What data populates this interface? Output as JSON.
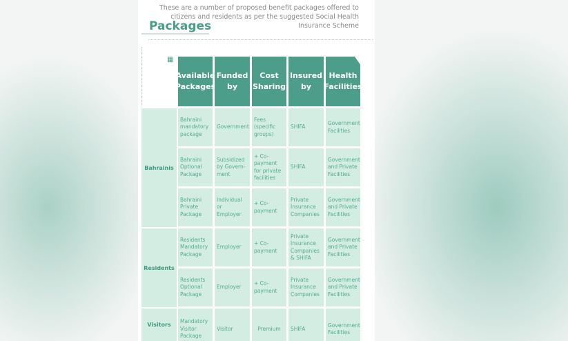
{
  "intro": "These are a number of proposed benefit packages offered to citizens and residents as per the suggested Social Health Insurance Scheme",
  "title": "Packages",
  "icon": "grid-icon",
  "colors": {
    "header": "#4c9e8a",
    "cell": "#d4ede3",
    "text": "#52ab90"
  },
  "headers": [
    "Available Packages",
    "Funded by",
    "Cost Sharing",
    "Insured by",
    "Health Facilities"
  ],
  "groups": [
    {
      "label": "Bahrainis"
    },
    {
      "label": "Residents"
    },
    {
      "label": "Visitors"
    }
  ],
  "rows": [
    [
      "Bahraini mandatory package",
      "Government",
      "Fees (specific groups)",
      "SHIFA",
      "Government Facilities"
    ],
    [
      "Bahraini Optional Package",
      "Subsidized by Govern-ment",
      "+ Co-payment for private facilities",
      "SHIFA",
      "Government and Private Facilities"
    ],
    [
      "Bahraini Private Package",
      "Individual or Employer",
      "+ Co-payment",
      "Private Insurance Companies",
      "Government and Private Facilities"
    ],
    [
      "Residents Mandatory Package",
      "Employer",
      "+ Co-payment",
      "Private Insurance Companies & SHIFA",
      "Government and Private Facilities"
    ],
    [
      "Residents Optional Package",
      "Employer",
      "+ Co-payment",
      "Private Insurance Companies",
      "Government and Private Facilities"
    ],
    [
      "Mandatory Visitor Package",
      "Visitor",
      "Premium",
      "SHIFA",
      "Government Facilities"
    ]
  ]
}
